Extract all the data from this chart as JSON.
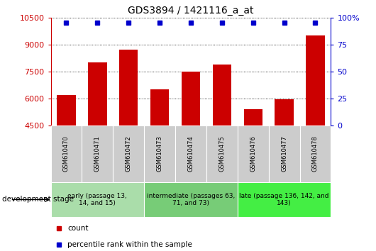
{
  "title": "GDS3894 / 1421116_a_at",
  "samples": [
    "GSM610470",
    "GSM610471",
    "GSM610472",
    "GSM610473",
    "GSM610474",
    "GSM610475",
    "GSM610476",
    "GSM610477",
    "GSM610478"
  ],
  "counts": [
    6200,
    8000,
    8700,
    6500,
    7500,
    7900,
    5400,
    5950,
    9500
  ],
  "ylim": [
    4500,
    10500
  ],
  "yticks": [
    4500,
    6000,
    7500,
    9000,
    10500
  ],
  "right_yticks": [
    0,
    25,
    50,
    75,
    100
  ],
  "bar_color": "#cc0000",
  "percentile_color": "#0000cc",
  "percentile_value": 10200,
  "groups": [
    {
      "label": "early (passage 13,\n14, and 15)",
      "indices": [
        0,
        1,
        2
      ],
      "color": "#aaddaa"
    },
    {
      "label": "intermediate (passages 63,\n71, and 73)",
      "indices": [
        3,
        4,
        5
      ],
      "color": "#77cc77"
    },
    {
      "label": "late (passage 136, 142, and\n143)",
      "indices": [
        6,
        7,
        8
      ],
      "color": "#44ee44"
    }
  ],
  "tick_bg_color": "#cccccc",
  "title_fontsize": 10,
  "axis_label_fontsize": 8,
  "group_fontsize": 6.5,
  "dev_stage_fontsize": 7.5
}
